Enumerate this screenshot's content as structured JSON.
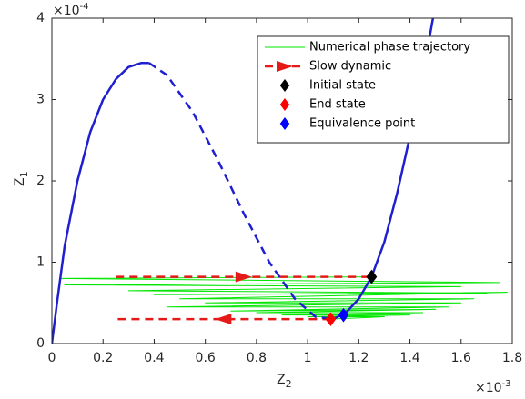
{
  "chart_data": {
    "type": "line",
    "x_multiplier": {
      "base": "×10",
      "exponent": "-3"
    },
    "y_multiplier": {
      "base": "×10",
      "exponent": "-4"
    },
    "xlabel": {
      "text": "Z",
      "subscript": "2"
    },
    "ylabel": {
      "text": "Z",
      "subscript": "1"
    },
    "xlim": [
      0,
      1.8
    ],
    "ylim": [
      0,
      4
    ],
    "xticks": [
      0,
      0.2,
      0.4,
      0.6,
      0.8,
      1,
      1.2,
      1.4,
      1.6,
      1.8
    ],
    "yticks": [
      0,
      1,
      2,
      3,
      4
    ],
    "grid": false,
    "legend": "northeast",
    "series": [
      {
        "name": "Numerical phase trajectory",
        "color": "#00e600",
        "style": "solid",
        "width": 1,
        "x": [
          1.25,
          0.03,
          1.75,
          0.05,
          1.6,
          0.3,
          1.7,
          0.4,
          1.78,
          0.5,
          1.65,
          0.6,
          1.6,
          0.45,
          1.55,
          0.7,
          1.5,
          0.8,
          1.45,
          0.9,
          1.4,
          1.0,
          1.3,
          1.09
        ],
        "values": [
          0.82,
          0.8,
          0.75,
          0.72,
          0.7,
          0.65,
          0.62,
          0.6,
          0.63,
          0.55,
          0.55,
          0.5,
          0.5,
          0.45,
          0.45,
          0.4,
          0.42,
          0.38,
          0.38,
          0.35,
          0.35,
          0.33,
          0.33,
          0.3
        ]
      },
      {
        "name": "Slow dynamic",
        "color": "#e61919",
        "style": "dashed",
        "width": 2.5,
        "arrows": true,
        "x": [
          0.25,
          1.25,
          1.2,
          1.09,
          0.25
        ],
        "values": [
          0.82,
          0.82,
          null,
          0.3,
          0.3
        ]
      },
      {
        "color": "#1f1fd0",
        "style": "solid",
        "width": 2.5,
        "x": [
          0,
          0.02,
          0.05,
          0.1,
          0.15,
          0.2,
          0.25,
          0.3,
          0.35,
          0.38
        ],
        "values": [
          0,
          0.5,
          1.2,
          2.0,
          2.6,
          3.0,
          3.25,
          3.4,
          3.45,
          3.45
        ]
      },
      {
        "color": "#1f1fd0",
        "style": "dashed",
        "width": 2.5,
        "x": [
          0.38,
          0.45,
          0.55,
          0.65,
          0.75,
          0.85,
          0.95,
          1.03,
          1.1
        ],
        "values": [
          3.45,
          3.3,
          2.85,
          2.25,
          1.6,
          1.0,
          0.55,
          0.33,
          0.3
        ]
      },
      {
        "color": "#1f1fd0",
        "style": "solid",
        "width": 2.5,
        "x": [
          1.1,
          1.15,
          1.2,
          1.25,
          1.3,
          1.35,
          1.4,
          1.45,
          1.49
        ],
        "values": [
          0.3,
          0.38,
          0.55,
          0.82,
          1.25,
          1.85,
          2.55,
          3.3,
          4.0
        ]
      },
      {
        "name": "Initial state",
        "color": "#000000",
        "style": "none",
        "marker": "diamond",
        "x": [
          1.25
        ],
        "values": [
          0.82
        ]
      },
      {
        "name": "End state",
        "color": "#ff0000",
        "style": "none",
        "marker": "diamond",
        "x": [
          1.09
        ],
        "values": [
          0.3
        ]
      },
      {
        "name": "Equivalence point",
        "color": "#0000ff",
        "style": "none",
        "marker": "diamond",
        "x": [
          1.14
        ],
        "values": [
          0.35
        ]
      }
    ]
  }
}
